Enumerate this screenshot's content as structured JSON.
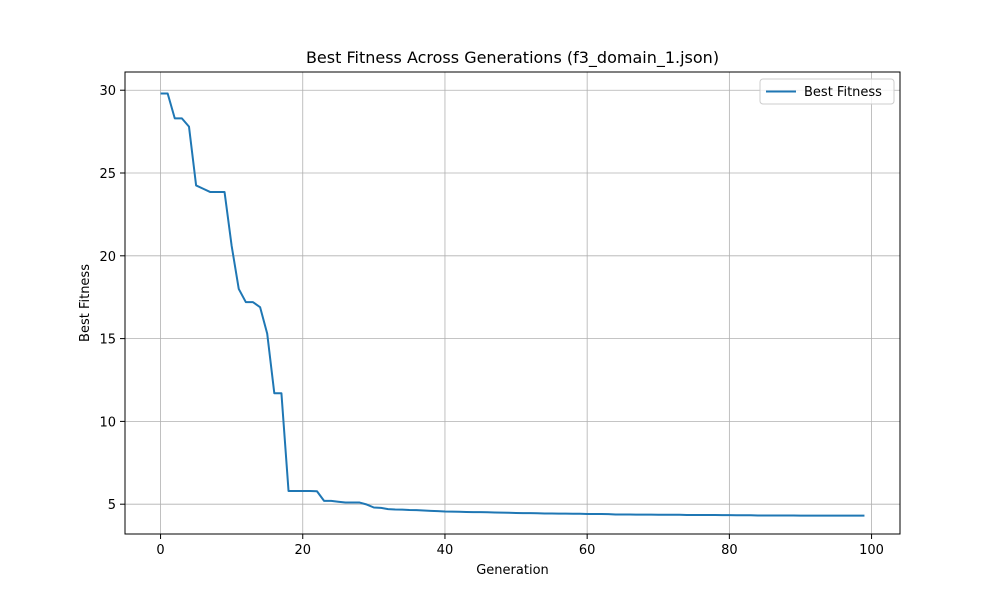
{
  "chart_data": {
    "type": "line",
    "title": "Best Fitness Across Generations (f3_domain_1.json)",
    "xlabel": "Generation",
    "ylabel": "Best Fitness",
    "xlim": [
      -5,
      104
    ],
    "ylim": [
      3.2,
      31.1
    ],
    "xticks": [
      0,
      20,
      40,
      60,
      80,
      100
    ],
    "yticks": [
      5,
      10,
      15,
      20,
      25,
      30
    ],
    "grid": true,
    "legend_position": "top-right",
    "series": [
      {
        "name": "Best Fitness",
        "color": "#1f77b4",
        "x": [
          0,
          1,
          2,
          3,
          4,
          5,
          6,
          7,
          8,
          9,
          10,
          11,
          12,
          13,
          14,
          15,
          16,
          17,
          18,
          19,
          20,
          21,
          22,
          23,
          24,
          25,
          26,
          27,
          28,
          29,
          30,
          31,
          32,
          33,
          34,
          35,
          36,
          37,
          38,
          39,
          40,
          41,
          42,
          43,
          44,
          45,
          46,
          47,
          48,
          49,
          50,
          51,
          52,
          53,
          54,
          55,
          56,
          57,
          58,
          59,
          60,
          61,
          62,
          63,
          64,
          65,
          66,
          67,
          68,
          69,
          70,
          71,
          72,
          73,
          74,
          75,
          76,
          77,
          78,
          79,
          80,
          81,
          82,
          83,
          84,
          85,
          86,
          87,
          88,
          89,
          90,
          91,
          92,
          93,
          94,
          95,
          96,
          97,
          98,
          99
        ],
        "y": [
          29.8,
          29.8,
          28.3,
          28.3,
          27.8,
          24.25,
          24.05,
          23.85,
          23.85,
          23.85,
          20.6,
          18.0,
          17.2,
          17.2,
          16.9,
          15.3,
          11.7,
          11.7,
          5.8,
          5.8,
          5.8,
          5.8,
          5.78,
          5.2,
          5.2,
          5.15,
          5.1,
          5.1,
          5.1,
          4.98,
          4.8,
          4.78,
          4.7,
          4.68,
          4.67,
          4.65,
          4.64,
          4.62,
          4.6,
          4.58,
          4.56,
          4.55,
          4.54,
          4.53,
          4.52,
          4.52,
          4.51,
          4.5,
          4.49,
          4.48,
          4.47,
          4.46,
          4.46,
          4.45,
          4.44,
          4.44,
          4.43,
          4.43,
          4.42,
          4.42,
          4.41,
          4.41,
          4.41,
          4.4,
          4.38,
          4.38,
          4.38,
          4.37,
          4.37,
          4.37,
          4.36,
          4.36,
          4.36,
          4.36,
          4.35,
          4.35,
          4.35,
          4.35,
          4.35,
          4.34,
          4.34,
          4.33,
          4.33,
          4.33,
          4.32,
          4.32,
          4.32,
          4.32,
          4.32,
          4.32,
          4.31,
          4.31,
          4.31,
          4.31,
          4.31,
          4.31,
          4.31,
          4.31,
          4.31,
          4.31
        ]
      }
    ]
  }
}
